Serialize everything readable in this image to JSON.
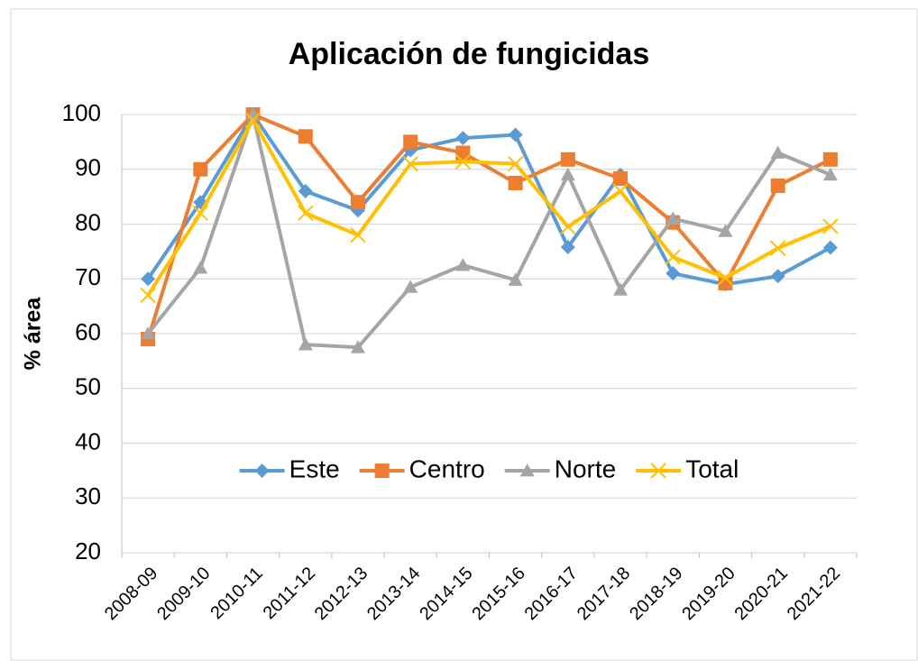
{
  "chart_data": {
    "type": "line",
    "title": "Aplicación de fungicidas",
    "y_label": "% área",
    "categories": [
      "2008-09",
      "2009-10",
      "2010-11",
      "2011-12",
      "2012-13",
      "2013-14",
      "2014-15",
      "2015-16",
      "2016-17",
      "2017-18",
      "2018-19",
      "2019-20",
      "2020-21",
      "2021-22"
    ],
    "series": [
      {
        "name": "Este",
        "color": "#5b9bd5",
        "marker": "diamond",
        "values": [
          70,
          84,
          100,
          86,
          82.5,
          93.5,
          95.7,
          96.3,
          75.8,
          89,
          71,
          69,
          70.5,
          75.7
        ]
      },
      {
        "name": "Centro",
        "color": "#ed7d31",
        "marker": "square",
        "values": [
          59,
          90,
          100,
          96,
          84,
          95,
          93,
          87.5,
          91.8,
          88.3,
          80.3,
          69.2,
          87,
          91.8
        ]
      },
      {
        "name": "Norte",
        "color": "#a5a5a5",
        "marker": "triangle",
        "values": [
          60,
          72,
          100,
          58,
          57.5,
          68.5,
          72.5,
          69.8,
          89,
          68,
          81,
          78.7,
          93,
          89
        ]
      },
      {
        "name": "Total",
        "color": "#ffc000",
        "marker": "x",
        "values": [
          67,
          82,
          99,
          82,
          78,
          91,
          91.4,
          91,
          79.5,
          86,
          74,
          70.2,
          75.6,
          79.6
        ]
      }
    ],
    "ylim": [
      20,
      100
    ],
    "yticks": [
      20,
      30,
      40,
      50,
      60,
      70,
      80,
      90,
      100
    ],
    "grid": true,
    "legend": "inside-bottom"
  }
}
